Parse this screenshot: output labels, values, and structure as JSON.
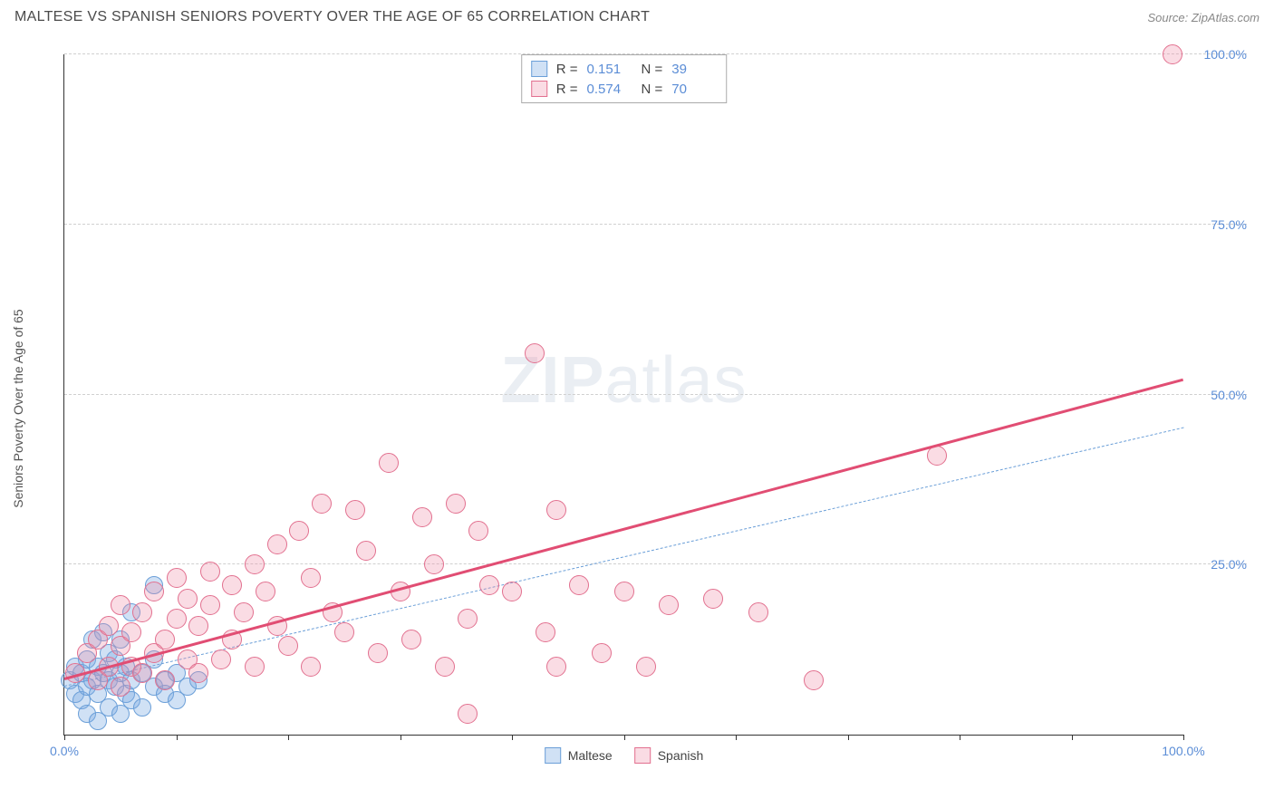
{
  "header": {
    "title": "MALTESE VS SPANISH SENIORS POVERTY OVER THE AGE OF 65 CORRELATION CHART",
    "source": "Source: ZipAtlas.com"
  },
  "chart": {
    "type": "scatter",
    "y_axis_label": "Seniors Poverty Over the Age of 65",
    "xlim": [
      0,
      100
    ],
    "ylim": [
      0,
      100
    ],
    "x_ticks": [
      0,
      10,
      20,
      30,
      40,
      50,
      60,
      70,
      80,
      90,
      100
    ],
    "x_tick_labels": {
      "0": "0.0%",
      "100": "100.0%"
    },
    "y_ticks": [
      25,
      50,
      75,
      100
    ],
    "y_tick_labels": {
      "25": "25.0%",
      "50": "50.0%",
      "75": "75.0%",
      "100": "100.0%"
    },
    "background_color": "#ffffff",
    "grid_color": "#d0d0d0",
    "axis_color": "#333333",
    "tick_label_color": "#5b8dd6",
    "watermark": {
      "prefix": "ZIP",
      "suffix": "atlas"
    },
    "series": [
      {
        "name": "Maltese",
        "marker_fill": "rgba(121,168,225,0.35)",
        "marker_stroke": "#6b9fd8",
        "marker_radius": 10,
        "trend_color": "#6b9fd8",
        "trend_dash": true,
        "trend_width": 1.5,
        "trend_start": [
          0,
          7
        ],
        "trend_end": [
          100,
          45
        ],
        "stats": {
          "R": "0.151",
          "N": "39"
        },
        "points": [
          [
            0.5,
            8
          ],
          [
            1,
            6
          ],
          [
            1,
            10
          ],
          [
            1.5,
            5
          ],
          [
            1.5,
            9
          ],
          [
            2,
            7
          ],
          [
            2,
            11
          ],
          [
            2,
            3
          ],
          [
            2.5,
            8
          ],
          [
            2.5,
            14
          ],
          [
            3,
            6
          ],
          [
            3,
            10
          ],
          [
            3,
            2
          ],
          [
            3.5,
            9
          ],
          [
            3.5,
            15
          ],
          [
            4,
            8
          ],
          [
            4,
            12
          ],
          [
            4,
            4
          ],
          [
            4.5,
            7
          ],
          [
            4.5,
            11
          ],
          [
            5,
            9
          ],
          [
            5,
            3
          ],
          [
            5,
            14
          ],
          [
            5.5,
            6
          ],
          [
            5.5,
            10
          ],
          [
            6,
            8
          ],
          [
            6,
            5
          ],
          [
            6,
            18
          ],
          [
            7,
            9
          ],
          [
            7,
            4
          ],
          [
            8,
            22
          ],
          [
            8,
            7
          ],
          [
            8,
            11
          ],
          [
            9,
            8
          ],
          [
            9,
            6
          ],
          [
            10,
            9
          ],
          [
            10,
            5
          ],
          [
            11,
            7
          ],
          [
            12,
            8
          ]
        ]
      },
      {
        "name": "Spanish",
        "marker_fill": "rgba(238,140,165,0.30)",
        "marker_stroke": "#e2708f",
        "marker_radius": 11,
        "trend_color": "#e14d73",
        "trend_dash": false,
        "trend_width": 2.5,
        "trend_start": [
          0,
          8
        ],
        "trend_end": [
          100,
          52
        ],
        "stats": {
          "R": "0.574",
          "N": "70"
        },
        "points": [
          [
            1,
            9
          ],
          [
            2,
            12
          ],
          [
            3,
            8
          ],
          [
            3,
            14
          ],
          [
            4,
            10
          ],
          [
            4,
            16
          ],
          [
            5,
            7
          ],
          [
            5,
            13
          ],
          [
            5,
            19
          ],
          [
            6,
            10
          ],
          [
            6,
            15
          ],
          [
            7,
            18
          ],
          [
            7,
            9
          ],
          [
            8,
            12
          ],
          [
            8,
            21
          ],
          [
            9,
            14
          ],
          [
            9,
            8
          ],
          [
            10,
            17
          ],
          [
            10,
            23
          ],
          [
            11,
            11
          ],
          [
            11,
            20
          ],
          [
            12,
            9
          ],
          [
            12,
            16
          ],
          [
            13,
            19
          ],
          [
            13,
            24
          ],
          [
            14,
            11
          ],
          [
            15,
            22
          ],
          [
            15,
            14
          ],
          [
            16,
            18
          ],
          [
            17,
            25
          ],
          [
            17,
            10
          ],
          [
            18,
            21
          ],
          [
            19,
            16
          ],
          [
            19,
            28
          ],
          [
            20,
            13
          ],
          [
            21,
            30
          ],
          [
            22,
            23
          ],
          [
            22,
            10
          ],
          [
            23,
            34
          ],
          [
            24,
            18
          ],
          [
            25,
            15
          ],
          [
            26,
            33
          ],
          [
            27,
            27
          ],
          [
            28,
            12
          ],
          [
            29,
            40
          ],
          [
            30,
            21
          ],
          [
            31,
            14
          ],
          [
            32,
            32
          ],
          [
            33,
            25
          ],
          [
            34,
            10
          ],
          [
            35,
            34
          ],
          [
            36,
            17
          ],
          [
            37,
            30
          ],
          [
            38,
            22
          ],
          [
            40,
            21
          ],
          [
            42,
            56
          ],
          [
            43,
            15
          ],
          [
            44,
            33
          ],
          [
            46,
            22
          ],
          [
            48,
            12
          ],
          [
            50,
            21
          ],
          [
            52,
            10
          ],
          [
            54,
            19
          ],
          [
            58,
            20
          ],
          [
            62,
            18
          ],
          [
            67,
            8
          ],
          [
            78,
            41
          ],
          [
            99,
            100
          ],
          [
            36,
            3
          ],
          [
            44,
            10
          ]
        ]
      }
    ],
    "legend": [
      {
        "label": "Maltese",
        "fill": "rgba(121,168,225,0.35)",
        "stroke": "#6b9fd8"
      },
      {
        "label": "Spanish",
        "fill": "rgba(238,140,165,0.30)",
        "stroke": "#e2708f"
      }
    ]
  }
}
